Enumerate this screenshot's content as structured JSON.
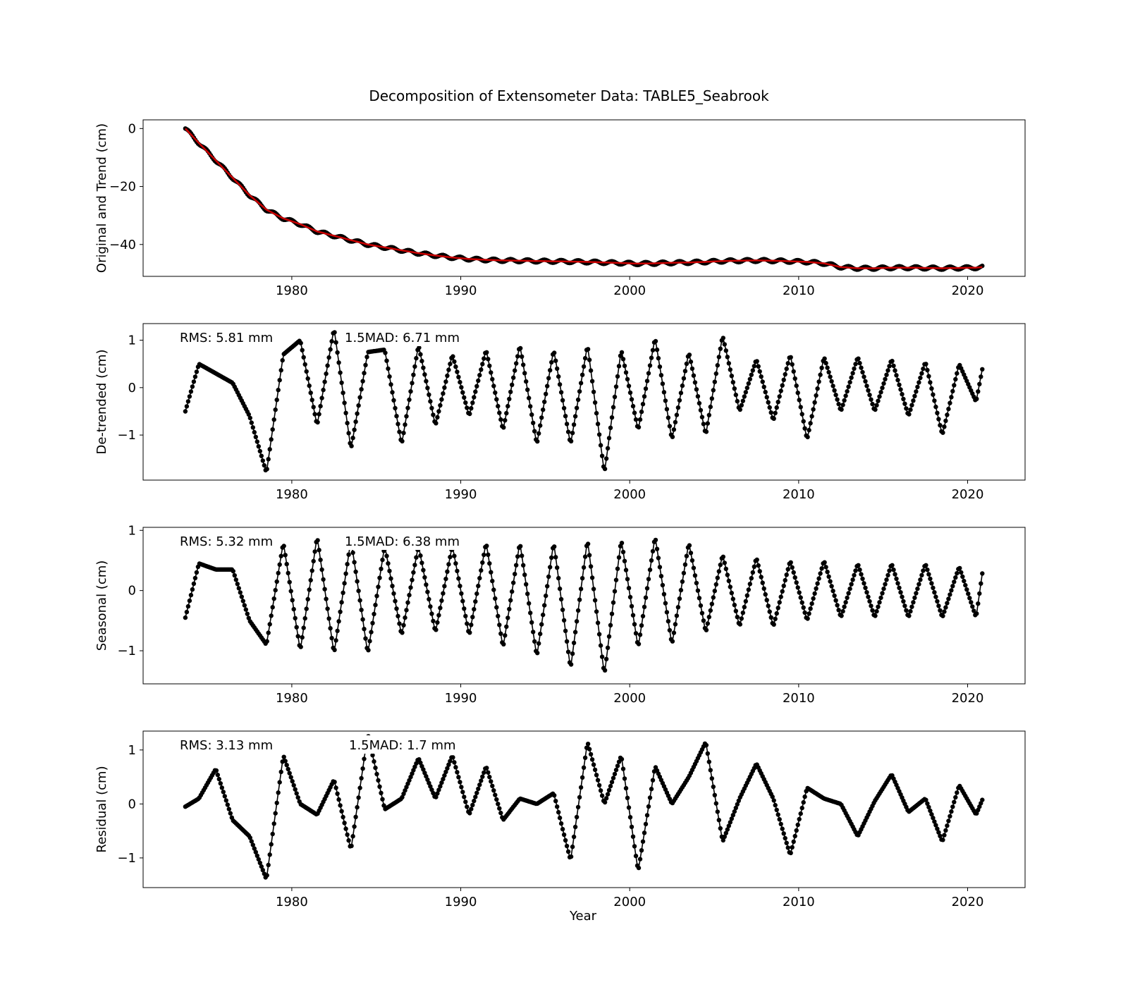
{
  "figure": {
    "title": "Decomposition of Extensometer Data: TABLE5_Seabrook",
    "xlabel": "Year"
  },
  "chart_data": [
    {
      "type": "line",
      "ylabel": "Original and Trend (cm)",
      "xlim": [
        1971.2,
        2023.4
      ],
      "ylim": [
        -51,
        3
      ],
      "xticks": [
        1980,
        1990,
        2000,
        2010,
        2020
      ],
      "yticks": [
        0,
        -20,
        -40
      ],
      "ytick_labels": [
        "0",
        "−20",
        "−40"
      ],
      "grid": false,
      "series": [
        {
          "name": "Original",
          "color": "#000000",
          "marker": "circle",
          "x": [
            1973.7,
            1974.5,
            1975.5,
            1976.5,
            1977.5,
            1978.5,
            1979.5,
            1980.5,
            1981.5,
            1982.5,
            1983.5,
            1984.5,
            1985.5,
            1986.5,
            1987.5,
            1988.5,
            1989.5,
            1990.5,
            1991.5,
            1992.5,
            1993.5,
            1994.5,
            1995.5,
            1996.5,
            1997.5,
            1998.5,
            1999.5,
            2000.5,
            2001.5,
            2002.5,
            2003.5,
            2004.5,
            2005.5,
            2006.5,
            2007.5,
            2008.5,
            2009.5,
            2010.5,
            2011.5,
            2012.5,
            2013.5,
            2014.5,
            2015.5,
            2016.5,
            2017.5,
            2018.5,
            2019.5,
            2020.5,
            2020.9
          ],
          "y": [
            0,
            -5,
            -11,
            -17,
            -23,
            -28,
            -31,
            -33,
            -35.5,
            -37,
            -38.5,
            -40,
            -41,
            -42,
            -43,
            -43.8,
            -44.5,
            -45,
            -45.3,
            -45.5,
            -45.6,
            -45.7,
            -45.8,
            -45.9,
            -46,
            -46.2,
            -46.4,
            -46.6,
            -46.5,
            -46.3,
            -46.2,
            -46,
            -45.7,
            -45.6,
            -45.5,
            -45.6,
            -45.8,
            -46,
            -46.5,
            -47.8,
            -48.2,
            -48.2,
            -48,
            -48,
            -48.1,
            -48.2,
            -48.1,
            -48,
            -47.8
          ]
        },
        {
          "name": "Trend",
          "color": "#cc0000",
          "x": [
            1973.7,
            1974.5,
            1975.5,
            1976.5,
            1977.5,
            1978.5,
            1979.5,
            1980.5,
            1981.5,
            1982.5,
            1983.5,
            1984.5,
            1985.5,
            1986.5,
            1987.5,
            1988.5,
            1989.5,
            1990.5,
            1991.5,
            1992.5,
            1993.5,
            1994.5,
            1995.5,
            1996.5,
            1997.5,
            1998.5,
            1999.5,
            2000.5,
            2001.5,
            2002.5,
            2003.5,
            2004.5,
            2005.5,
            2006.5,
            2007.5,
            2008.5,
            2009.5,
            2010.5,
            2011.5,
            2012.5,
            2013.5,
            2014.5,
            2015.5,
            2016.5,
            2017.5,
            2018.5,
            2019.5,
            2020.5,
            2020.9
          ],
          "y": [
            0,
            -5,
            -11,
            -17,
            -23,
            -28,
            -31,
            -33,
            -35.5,
            -37,
            -38.5,
            -40,
            -41,
            -42,
            -43,
            -43.8,
            -44.5,
            -45,
            -45.3,
            -45.5,
            -45.6,
            -45.7,
            -45.8,
            -45.9,
            -46,
            -46.2,
            -46.4,
            -46.6,
            -46.5,
            -46.3,
            -46.2,
            -46,
            -45.7,
            -45.6,
            -45.5,
            -45.6,
            -45.8,
            -46,
            -46.5,
            -47.8,
            -48.2,
            -48.2,
            -48,
            -48,
            -48.1,
            -48.2,
            -48.1,
            -48,
            -47.8
          ]
        }
      ]
    },
    {
      "type": "line",
      "ylabel": "De-trended (cm)",
      "xlim": [
        1971.2,
        2023.4
      ],
      "ylim": [
        -1.95,
        1.35
      ],
      "xticks": [
        1980,
        1990,
        2000,
        2010,
        2020
      ],
      "yticks": [
        1,
        0,
        -1
      ],
      "ytick_labels": [
        "1",
        "0",
        "−1"
      ],
      "grid": false,
      "annotations": [
        "RMS: 5.81 mm",
        "1.5MAD: 6.71 mm"
      ],
      "series": [
        {
          "name": "De-trended",
          "color": "#000000",
          "marker": "circle",
          "x": [
            1973.7,
            1974.5,
            1975.5,
            1976.5,
            1977.5,
            1978.5,
            1979.5,
            1980.5,
            1981.5,
            1982.5,
            1983.5,
            1984.5,
            1985.5,
            1986.5,
            1987.5,
            1988.5,
            1989.5,
            1990.5,
            1991.5,
            1992.5,
            1993.5,
            1994.5,
            1995.5,
            1996.5,
            1997.5,
            1998.5,
            1999.5,
            2000.5,
            2001.5,
            2002.5,
            2003.5,
            2004.5,
            2005.5,
            2006.5,
            2007.5,
            2008.5,
            2009.5,
            2010.5,
            2011.5,
            2012.5,
            2013.5,
            2014.5,
            2015.5,
            2016.5,
            2017.5,
            2018.5,
            2019.5,
            2020.5,
            2020.9
          ],
          "y": [
            -0.5,
            0.5,
            0.3,
            0.1,
            -0.6,
            -1.8,
            0.7,
            1.0,
            -0.8,
            1.25,
            -1.3,
            0.75,
            0.8,
            -1.2,
            0.9,
            -0.8,
            0.7,
            -0.6,
            0.8,
            -0.9,
            0.9,
            -1.2,
            0.8,
            -1.2,
            0.9,
            -1.8,
            0.8,
            -0.9,
            1.05,
            -1.1,
            0.75,
            -1.0,
            1.1,
            -0.5,
            0.6,
            -0.7,
            0.7,
            -1.1,
            0.65,
            -0.5,
            0.65,
            -0.5,
            0.6,
            -0.6,
            0.55,
            -1.0,
            0.5,
            -0.3,
            0.45
          ]
        }
      ]
    },
    {
      "type": "line",
      "ylabel": "Seasonal (cm)",
      "xlim": [
        1971.2,
        2023.4
      ],
      "ylim": [
        -1.55,
        1.05
      ],
      "xticks": [
        1980,
        1990,
        2000,
        2010,
        2020
      ],
      "yticks": [
        1,
        0,
        -1
      ],
      "ytick_labels": [
        "1",
        "0",
        "−1"
      ],
      "grid": false,
      "annotations": [
        "RMS: 5.32 mm",
        "1.5MAD: 6.38 mm"
      ],
      "series": [
        {
          "name": "Seasonal",
          "color": "#000000",
          "marker": "circle",
          "x": [
            1973.7,
            1974.5,
            1975.5,
            1976.5,
            1977.5,
            1978.5,
            1979.5,
            1980.5,
            1981.5,
            1982.5,
            1983.5,
            1984.5,
            1985.5,
            1986.5,
            1987.5,
            1988.5,
            1989.5,
            1990.5,
            1991.5,
            1992.5,
            1993.5,
            1994.5,
            1995.5,
            1996.5,
            1997.5,
            1998.5,
            1999.5,
            2000.5,
            2001.5,
            2002.5,
            2003.5,
            2004.5,
            2005.5,
            2006.5,
            2007.5,
            2008.5,
            2009.5,
            2010.5,
            2011.5,
            2012.5,
            2013.5,
            2014.5,
            2015.5,
            2016.5,
            2017.5,
            2018.5,
            2019.5,
            2020.5,
            2020.9
          ],
          "y": [
            -0.45,
            0.45,
            0.35,
            0.35,
            -0.5,
            -0.9,
            0.8,
            -1.0,
            0.9,
            -1.05,
            0.85,
            -1.05,
            0.75,
            -0.75,
            0.75,
            -0.7,
            0.75,
            -0.75,
            0.8,
            -0.95,
            0.8,
            -1.1,
            0.8,
            -1.3,
            0.85,
            -1.4,
            0.85,
            -0.95,
            0.9,
            -0.9,
            0.8,
            -0.7,
            0.6,
            -0.6,
            0.55,
            -0.6,
            0.5,
            -0.5,
            0.5,
            -0.45,
            0.45,
            -0.45,
            0.45,
            -0.45,
            0.45,
            -0.45,
            0.4,
            -0.45,
            0.35
          ]
        }
      ]
    },
    {
      "type": "line",
      "ylabel": "Residual (cm)",
      "xlim": [
        1971.2,
        2023.4
      ],
      "ylim": [
        -1.55,
        1.35
      ],
      "xticks": [
        1980,
        1990,
        2000,
        2010,
        2020
      ],
      "yticks": [
        1,
        0,
        -1
      ],
      "ytick_labels": [
        "1",
        "0",
        "−1"
      ],
      "grid": false,
      "annotations": [
        "RMS: 3.13 mm",
        "1.5MAD: 1.7 mm"
      ],
      "series": [
        {
          "name": "Residual",
          "color": "#000000",
          "marker": "circle",
          "x": [
            1973.7,
            1974.5,
            1975.5,
            1976.5,
            1977.5,
            1978.5,
            1979.5,
            1980.5,
            1981.5,
            1982.5,
            1983.5,
            1984.5,
            1985.5,
            1986.5,
            1987.5,
            1988.5,
            1989.5,
            1990.5,
            1991.5,
            1992.5,
            1993.5,
            1994.5,
            1995.5,
            1996.5,
            1997.5,
            1998.5,
            1999.5,
            2000.5,
            2001.5,
            2002.5,
            2003.5,
            2004.5,
            2005.5,
            2006.5,
            2007.5,
            2008.5,
            2009.5,
            2010.5,
            2011.5,
            2012.5,
            2013.5,
            2014.5,
            2015.5,
            2016.5,
            2017.5,
            2018.5,
            2019.5,
            2020.5,
            2020.9
          ],
          "y": [
            -0.05,
            0.1,
            0.65,
            -0.3,
            -0.6,
            -1.4,
            0.9,
            0.0,
            -0.2,
            0.45,
            -0.85,
            1.3,
            -0.1,
            0.1,
            0.85,
            0.1,
            0.9,
            -0.2,
            0.7,
            -0.3,
            0.1,
            0.0,
            0.2,
            -1.05,
            1.15,
            0.0,
            0.9,
            -1.25,
            0.7,
            0.0,
            0.5,
            1.15,
            -0.7,
            0.1,
            0.75,
            0.1,
            -0.95,
            0.3,
            0.1,
            0.0,
            -0.6,
            0.05,
            0.55,
            -0.15,
            0.1,
            -0.7,
            0.35,
            -0.2,
            0.1
          ]
        }
      ]
    }
  ]
}
